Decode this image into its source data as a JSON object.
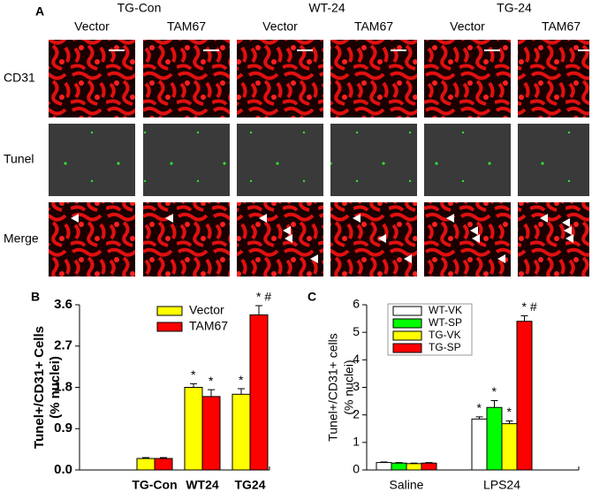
{
  "figure": {
    "panel_a": {
      "letter": "A",
      "groups": [
        "TG-Con",
        "WT-24",
        "TG-24"
      ],
      "columns": [
        "Vector",
        "TAM67",
        "Vector",
        "TAM67",
        "Vector",
        "TAM67"
      ],
      "rows": [
        "CD31",
        "Tunel",
        "Merge"
      ]
    }
  },
  "chart_data": [
    {
      "type": "bar",
      "letter": "B",
      "y_label": [
        "Tunel+/CD31+ Cells",
        "(% nuclei)"
      ],
      "categories": [
        "TG-Con",
        "WT24",
        "TG24"
      ],
      "series": [
        {
          "name": "Vector",
          "color": "#ffff00",
          "values": [
            0.25,
            1.8,
            1.65
          ],
          "errors": [
            0.02,
            0.08,
            0.12
          ],
          "markers": [
            null,
            "*",
            "*"
          ]
        },
        {
          "name": "TAM67",
          "color": "#ff0000",
          "values": [
            0.25,
            1.6,
            3.38
          ],
          "errors": [
            0.02,
            0.15,
            0.2
          ],
          "markers": [
            null,
            "*",
            "*  #"
          ]
        }
      ],
      "ylim": [
        0,
        3.6
      ],
      "yticks": [
        {
          "value": 0,
          "label": "0.0"
        },
        0.9,
        1.8,
        2.7,
        3.6
      ]
    },
    {
      "type": "bar",
      "letter": "C",
      "y_label": [
        "Tunel+/CD31+ cells",
        "(% nuclei)"
      ],
      "categories": [
        "Saline",
        "LPS24"
      ],
      "series": [
        {
          "name": "WT-VK",
          "color": "#ffffff",
          "values": [
            0.27,
            1.85
          ],
          "errors": [
            0.02,
            0.08
          ],
          "markers": [
            null,
            "*"
          ]
        },
        {
          "name": "WT-SP",
          "color": "#00ff00",
          "values": [
            0.25,
            2.27
          ],
          "errors": [
            0.02,
            0.25
          ],
          "markers": [
            null,
            "*"
          ]
        },
        {
          "name": "TG-VK",
          "color": "#ffff00",
          "values": [
            0.23,
            1.68
          ],
          "errors": [
            0.02,
            0.1
          ],
          "markers": [
            null,
            "*"
          ]
        },
        {
          "name": "TG-SP",
          "color": "#ff0000",
          "values": [
            0.25,
            5.4
          ],
          "errors": [
            0.02,
            0.2
          ],
          "markers": [
            null,
            "*  #"
          ]
        }
      ],
      "ylim": [
        0,
        6
      ],
      "yticks": [
        0,
        1,
        2,
        3,
        4,
        5,
        6
      ]
    }
  ]
}
